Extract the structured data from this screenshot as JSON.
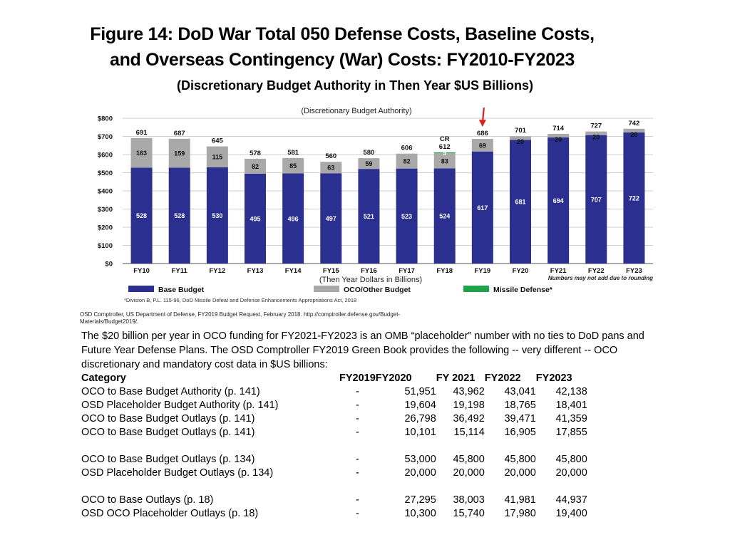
{
  "title_line1": "Figure 14: DoD  War Total 050 Defense Costs, Baseline Costs,",
  "title_line2": "and Overseas Contingency (War) Costs: FY2010-FY2023",
  "subtitle": "(Discretionary Budget Authority in Then Year $US Billions)",
  "chart_data": {
    "type": "bar",
    "stacked": true,
    "title": "(Discretionary Budget Authority)",
    "xlabel": "(Then Year Dollars in Billions)",
    "ylabel": "",
    "ylim": [
      0,
      800
    ],
    "yticks": [
      "$0",
      "$100",
      "$200",
      "$300",
      "$400",
      "$500",
      "$600",
      "$700",
      "$800"
    ],
    "categories": [
      "FY10",
      "FY11",
      "FY12",
      "FY13",
      "FY14",
      "FY15",
      "FY16",
      "FY17",
      "FY18",
      "FY19",
      "FY20",
      "FY21",
      "FY22",
      "FY23"
    ],
    "series": [
      {
        "name": "Base Budget",
        "color": "#2b2f8f",
        "values": [
          528,
          528,
          530,
          495,
          496,
          497,
          521,
          523,
          524,
          617,
          681,
          694,
          707,
          722
        ]
      },
      {
        "name": "OCO/Other  Budget",
        "color": "#a9a9a9",
        "values": [
          163,
          159,
          115,
          82,
          85,
          63,
          59,
          82,
          83,
          69,
          20,
          20,
          20,
          20
        ]
      },
      {
        "name": "Missile Defense*",
        "color": "#1ea34a",
        "values": [
          0,
          0,
          0,
          0,
          0,
          0,
          0,
          0,
          5,
          0,
          0,
          0,
          0,
          0
        ]
      }
    ],
    "totals": [
      691,
      687,
      645,
      578,
      581,
      560,
      580,
      606,
      612,
      686,
      701,
      714,
      727,
      742
    ],
    "cr_label": "CR",
    "cr_index": 8,
    "arrow_index": 9,
    "rounding_note": "Numbers may not add due to rounding",
    "footnote": "*Division B, P.L. 115-96, DoD Missile Defeat and Defense Enhancements Appropriations Act, 2018",
    "source_line1": "OSD Comptroller, US Department of Defense, FY2019 Budget Request, February 2018. http://comptroller.defense.gov/Budget-",
    "source_line2": "Materials/Budget2019/."
  },
  "paragraph": "The $20 billion per year in OCO funding for FY2021-FY2023 is an OMB “placeholder” number with no ties to DoD pans and Future Year Defense Plans. The OSD Comptroller FY2019 Green Book provides the following -- very different -- OCO discretionary and mandatory cost data in $US billions:",
  "table": {
    "headers": [
      "Category",
      "FY2019",
      "FY2020",
      "FY 2021",
      "FY2022",
      "FY2023"
    ],
    "groups": [
      [
        [
          "OCO to Base Budget Authority (p. 141)",
          "-",
          "51,951",
          "43,962",
          "43,041",
          "42,138"
        ],
        [
          "OSD Placeholder Budget Authority (p. 141)",
          "-",
          "19,604",
          "19,198",
          "18,765",
          "18,401"
        ],
        [
          "OCO to Base Budget Outlays (p. 141)",
          "-",
          "26,798",
          "36,492",
          "39,471",
          "41,359"
        ],
        [
          "OCO to Base Budget Outlays (p. 141)",
          "-",
          "10,101",
          "15,114",
          "16,905",
          "17,855"
        ]
      ],
      [
        [
          "OCO to Base Budget Outlays (p. 134)",
          "-",
          "53,000",
          "45,800",
          "45,800",
          "45,800"
        ],
        [
          "OSD Placeholder Budget Outlays (p. 134)",
          "-",
          "20,000",
          "20,000",
          "20,000",
          "20,000"
        ]
      ],
      [
        [
          "OCO to Base Outlays (p. 18)",
          "-",
          "27,295",
          "38,003",
          "41,981",
          "44,937"
        ],
        [
          "OSD OCO Placeholder Outlays (p. 18)",
          "-",
          "10,300",
          "15,740",
          "17,980",
          "19,400"
        ]
      ]
    ]
  }
}
